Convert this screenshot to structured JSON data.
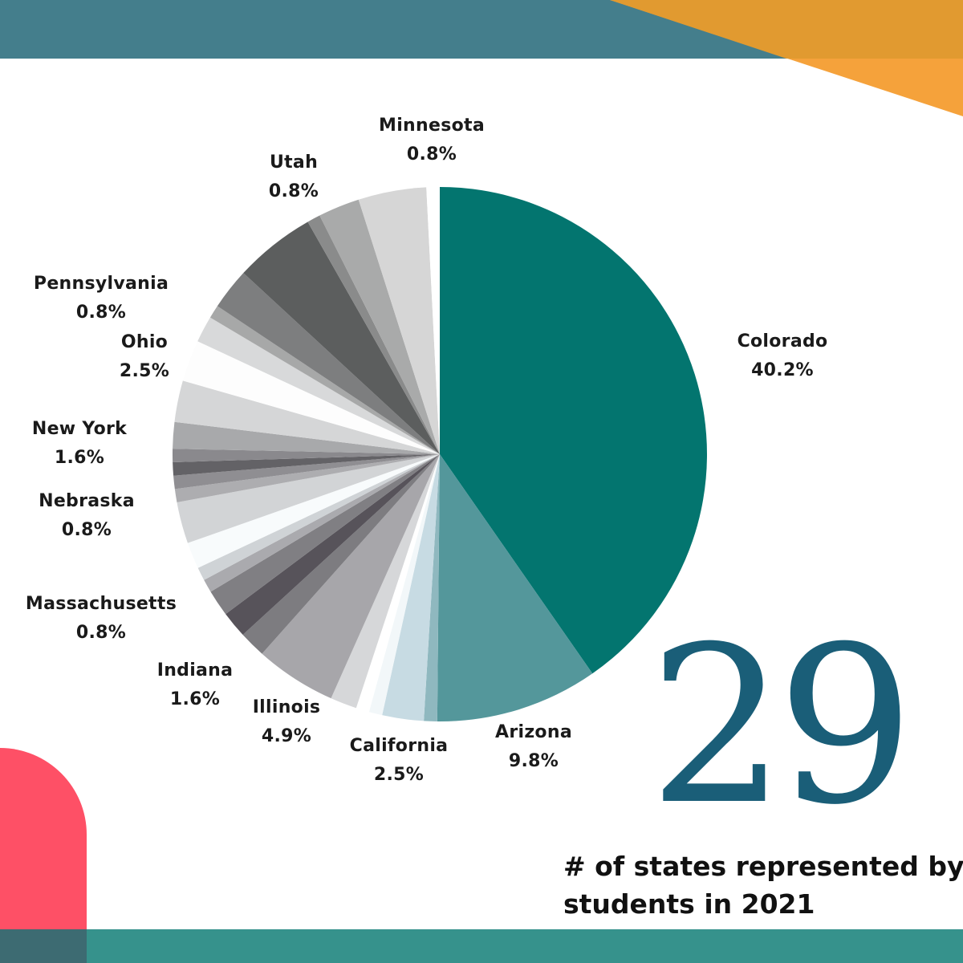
{
  "chart_data": {
    "type": "pie",
    "slices": [
      {
        "label": "Colorado",
        "value": 40.2,
        "color": "#03756f"
      },
      {
        "label": "Arizona",
        "value": 9.8,
        "color": "#54979b"
      },
      {
        "label": "",
        "value": 0.8,
        "color": "#8fb8bf"
      },
      {
        "label": "California",
        "value": 2.5,
        "color": "#c7dbe3"
      },
      {
        "label": "",
        "value": 0.8,
        "color": "#f2f7f9"
      },
      {
        "label": "",
        "value": 0.8,
        "color": "#ffffff"
      },
      {
        "label": "",
        "value": 1.6,
        "color": "#d6d7d9"
      },
      {
        "label": "Illinois",
        "value": 4.9,
        "color": "#a7a6aa"
      },
      {
        "label": "",
        "value": 1.6,
        "color": "#7d7c80"
      },
      {
        "label": "Indiana",
        "value": 1.6,
        "color": "#57535a"
      },
      {
        "label": "",
        "value": 1.6,
        "color": "#807f83"
      },
      {
        "label": "",
        "value": 0.8,
        "color": "#aaaaae"
      },
      {
        "label": "Massachusetts",
        "value": 0.8,
        "color": "#cfd3d6"
      },
      {
        "label": "",
        "value": 1.6,
        "color": "#f8fbfc"
      },
      {
        "label": "",
        "value": 2.5,
        "color": "#d2d4d6"
      },
      {
        "label": "",
        "value": 0.8,
        "color": "#adadb0"
      },
      {
        "label": "",
        "value": 0.8,
        "color": "#8f8e92"
      },
      {
        "label": "Nebraska",
        "value": 0.8,
        "color": "#636266"
      },
      {
        "label": "",
        "value": 0.8,
        "color": "#8a898d"
      },
      {
        "label": "New York",
        "value": 1.6,
        "color": "#a8a9ab"
      },
      {
        "label": "",
        "value": 2.5,
        "color": "#d5d6d7"
      },
      {
        "label": "Ohio",
        "value": 2.5,
        "color": "#fdfdfd"
      },
      {
        "label": "",
        "value": 1.6,
        "color": "#d8d9da"
      },
      {
        "label": "Pennsylvania",
        "value": 0.8,
        "color": "#a7a8a8"
      },
      {
        "label": "",
        "value": 2.5,
        "color": "#7d7e7f"
      },
      {
        "label": "",
        "value": 4.9,
        "color": "#5c5e5e"
      },
      {
        "label": "Utah",
        "value": 0.8,
        "color": "#8a8b8b"
      },
      {
        "label": "",
        "value": 2.5,
        "color": "#a9aaaa"
      },
      {
        "label": "",
        "value": 4.1,
        "color": "#d6d6d6"
      },
      {
        "label": "Minnesota",
        "value": 0.8,
        "color": "#ffffff"
      }
    ]
  },
  "labels": [
    {
      "name": "Colorado",
      "pct": "40.2%"
    },
    {
      "name": "Arizona",
      "pct": "9.8%"
    },
    {
      "name": "California",
      "pct": "2.5%"
    },
    {
      "name": "Illinois",
      "pct": "4.9%"
    },
    {
      "name": "Indiana",
      "pct": "1.6%"
    },
    {
      "name": "Massachusetts",
      "pct": "0.8%"
    },
    {
      "name": "Nebraska",
      "pct": "0.8%"
    },
    {
      "name": "New York",
      "pct": "1.6%"
    },
    {
      "name": "Ohio",
      "pct": "2.5%"
    },
    {
      "name": "Pennsylvania",
      "pct": "0.8%"
    },
    {
      "name": "Utah",
      "pct": "0.8%"
    },
    {
      "name": "Minnesota",
      "pct": "0.8%"
    }
  ],
  "stat": {
    "number": "29",
    "caption_line1": "# of states represented by",
    "caption_line2": "students in 2021"
  },
  "colors": {
    "top_band": "#447e8c",
    "orange_accent": "#f5a23b",
    "bottom_band": "#36928c",
    "coral_accent": "#fe5066",
    "number_color": "#1a5e78"
  }
}
